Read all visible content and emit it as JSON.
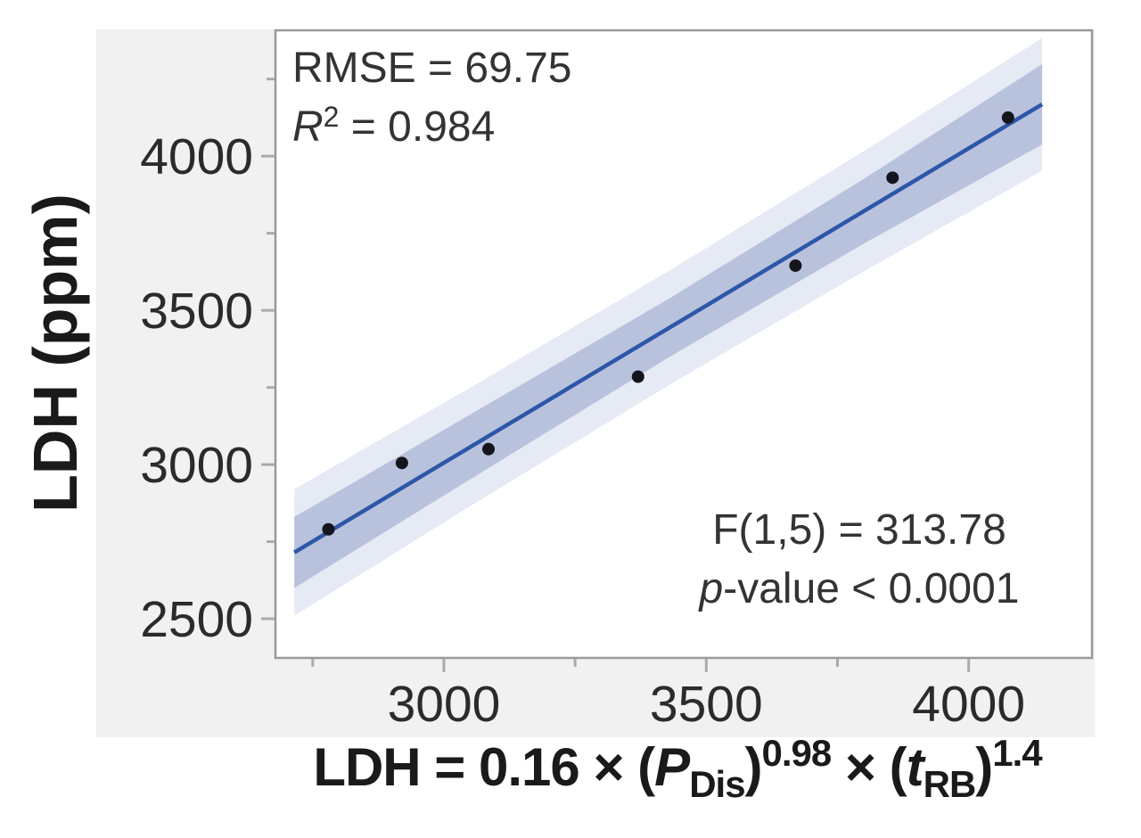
{
  "figure": {
    "y_axis_title": "LDH (ppm)",
    "equation": {
      "prefix": "LDH = 0.16 × (",
      "p_var": "P",
      "p_sub": "Dis",
      "close1": ")",
      "p_exp": "0.98",
      "times2": " × (",
      "t_var": "t",
      "t_sub": "RB",
      "close2": ")",
      "t_exp": "1.4"
    },
    "annotations": {
      "rmse": "RMSE = 69.75",
      "r2_var": "R",
      "r2_sup": "2",
      "r2_rest": " = 0.984",
      "f_stat": "F(1,5) = 313.78",
      "p_var": "p",
      "p_rest": "-value < 0.0001"
    }
  },
  "chart_data": {
    "type": "scatter",
    "title": "",
    "xlabel": "LDH = 0.16 × (P_Dis)^0.98 × (t_RB)^1.4",
    "ylabel": "LDH (ppm)",
    "x_range": [
      2679,
      4235
    ],
    "y_range": [
      2373,
      4408
    ],
    "x_ticks_major": [
      {
        "v": 3000,
        "label": "3000"
      },
      {
        "v": 3500,
        "label": "3500"
      },
      {
        "v": 4000,
        "label": "4000"
      }
    ],
    "x_ticks_minor": [
      2750,
      3250,
      3750
    ],
    "y_ticks_major": [
      {
        "v": 2500,
        "label": "2500"
      },
      {
        "v": 3000,
        "label": "3000"
      },
      {
        "v": 3500,
        "label": "3500"
      },
      {
        "v": 4000,
        "label": "4000"
      }
    ],
    "y_ticks_minor": [
      2750,
      3250,
      3750,
      4250
    ],
    "points": [
      [
        2780,
        2790
      ],
      [
        2920,
        3005
      ],
      [
        3085,
        3050
      ],
      [
        3370,
        3285
      ],
      [
        3670,
        3645
      ],
      [
        3855,
        3930
      ],
      [
        4075,
        4125
      ]
    ],
    "fit_line": {
      "x1": 2715,
      "y1": 2715,
      "x2": 4140,
      "y2": 4168
    },
    "bands": {
      "inner": [
        {
          "x": 2715,
          "lo": 2600,
          "hi": 2830
        },
        {
          "x": 3050,
          "lo": 2952,
          "hi": 3162
        },
        {
          "x": 3430,
          "lo": 3349,
          "hi": 3539
        },
        {
          "x": 3800,
          "lo": 3716,
          "hi": 3926
        },
        {
          "x": 4140,
          "lo": 4038,
          "hi": 4298
        }
      ],
      "outer": [
        {
          "x": 2715,
          "lo": 2510,
          "hi": 2920
        },
        {
          "x": 3050,
          "lo": 2865,
          "hi": 3249
        },
        {
          "x": 3430,
          "lo": 3259,
          "hi": 3629
        },
        {
          "x": 3800,
          "lo": 3626,
          "hi": 4016
        },
        {
          "x": 4140,
          "lo": 3953,
          "hi": 4383
        }
      ]
    },
    "stats": {
      "rmse": 69.75,
      "r_squared": 0.984,
      "f_statistic": "F(1,5) = 313.78",
      "p_value": "< 0.0001"
    },
    "colors": {
      "fit_line": "#2d57a7",
      "inner_band": "#b9c2dd",
      "outer_band": "#e6eaf5",
      "point": "#15151e",
      "plot_border": "#999999",
      "tick": "#aaaaaa",
      "tick_label": "#2b2b2b",
      "panel_background": "#f1f1f1",
      "plot_background": "#ffffff"
    }
  }
}
